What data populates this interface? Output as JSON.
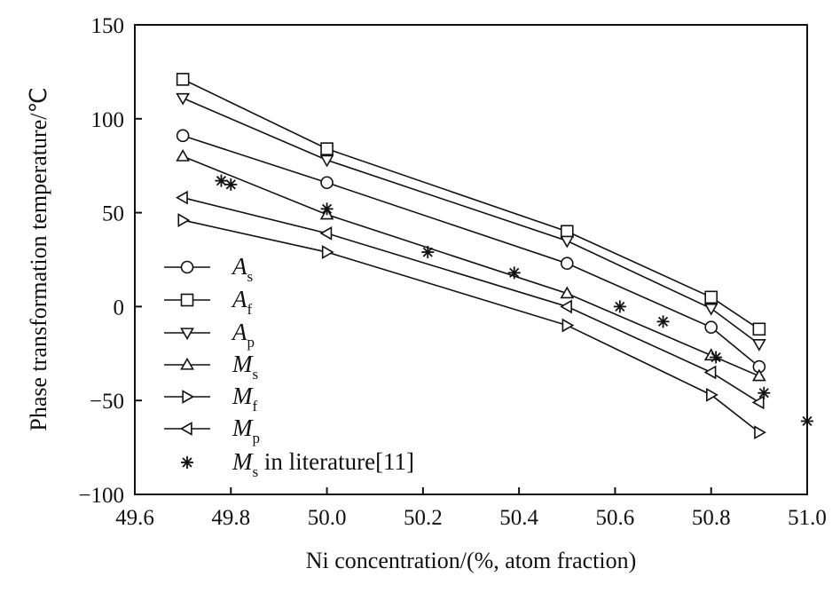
{
  "chart_data": {
    "type": "line",
    "xlabel": "Ni concentration/(%, atom fraction)",
    "ylabel": "Phase transformation temperature/℃",
    "xlim": [
      49.6,
      51.0
    ],
    "ylim": [
      -100,
      150
    ],
    "x_ticks": [
      "49.6",
      "49.8",
      "50.0",
      "50.2",
      "50.4",
      "50.6",
      "50.8",
      "51.0"
    ],
    "y_ticks": [
      "−100",
      "−50",
      "0",
      "50",
      "100",
      "150"
    ],
    "x_tick_values": [
      49.6,
      49.8,
      50.0,
      50.2,
      50.4,
      50.6,
      50.8,
      51.0
    ],
    "y_tick_values": [
      -100,
      -50,
      0,
      50,
      100,
      150
    ],
    "grid": false,
    "legend_position": "left",
    "series": [
      {
        "name": "A",
        "sub": "s",
        "marker": "circle",
        "line": true,
        "x": [
          49.7,
          50.0,
          50.5,
          50.8,
          50.9
        ],
        "y": [
          91,
          66,
          23,
          -11,
          -32
        ]
      },
      {
        "name": "A",
        "sub": "f",
        "marker": "square",
        "line": true,
        "x": [
          49.7,
          50.0,
          50.5,
          50.8,
          50.9
        ],
        "y": [
          121,
          84,
          40,
          5,
          -12
        ]
      },
      {
        "name": "A",
        "sub": "p",
        "marker": "triangle-down",
        "line": true,
        "x": [
          49.7,
          50.0,
          50.5,
          50.8,
          50.9
        ],
        "y": [
          111,
          78,
          35,
          -1,
          -20
        ]
      },
      {
        "name": "M",
        "sub": "s",
        "marker": "triangle-up",
        "line": true,
        "x": [
          49.7,
          50.0,
          50.5,
          50.8,
          50.9
        ],
        "y": [
          80,
          49,
          7,
          -26,
          -37
        ]
      },
      {
        "name": "M",
        "sub": "f",
        "marker": "triangle-right",
        "line": true,
        "x": [
          49.7,
          50.0,
          50.5,
          50.8,
          50.9
        ],
        "y": [
          46,
          29,
          -10,
          -47,
          -67
        ]
      },
      {
        "name": "M",
        "sub": "p",
        "marker": "triangle-left",
        "line": true,
        "x": [
          49.7,
          50.0,
          50.5,
          50.8,
          50.9
        ],
        "y": [
          58,
          39,
          0,
          -35,
          -51
        ]
      },
      {
        "name": "M",
        "sub": "s",
        "suffix": " in literature[11]",
        "marker": "asterisk",
        "line": false,
        "x": [
          49.78,
          49.8,
          50.0,
          50.21,
          50.39,
          50.61,
          50.7,
          50.81,
          50.91,
          51.0
        ],
        "y": [
          67,
          65,
          52,
          29,
          18,
          0,
          -8,
          -27,
          -46,
          -61
        ]
      }
    ]
  }
}
